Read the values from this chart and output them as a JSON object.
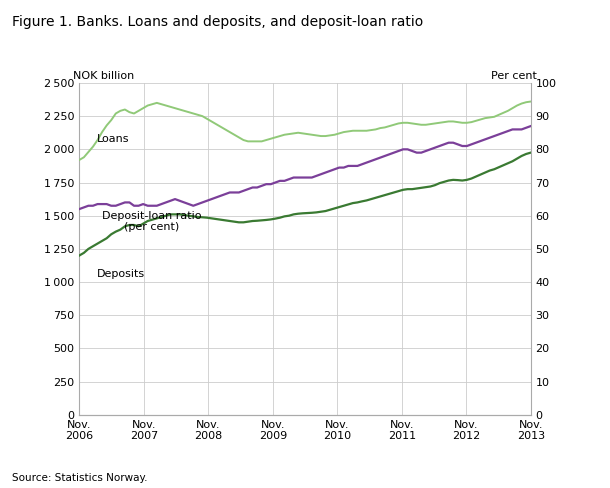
{
  "title": "Figure 1. Banks. Loans and deposits, and deposit-loan ratio",
  "ylabel_left": "NOK billion",
  "ylabel_right": "Per cent",
  "source": "Source: Statistics Norway.",
  "x_tick_labels": [
    "Nov.\n2006",
    "Nov.\n2007",
    "Nov.\n2008",
    "Nov.\n2009",
    "Nov.\n2010",
    "Nov.\n2011",
    "Nov.\n2012",
    "Nov.\n2013"
  ],
  "ylim_left": [
    0,
    2500
  ],
  "ylim_right": [
    0,
    100
  ],
  "yticks_left": [
    0,
    250,
    500,
    750,
    1000,
    1250,
    1500,
    1750,
    2000,
    2250,
    2500
  ],
  "yticks_right": [
    0,
    10,
    20,
    30,
    40,
    50,
    60,
    70,
    80,
    90,
    100
  ],
  "loans_color": "#90c978",
  "deposits_color": "#3a7a32",
  "ratio_color": "#7b3f99",
  "background_color": "#ffffff",
  "grid_color": "#cccccc",
  "loans_label": "Loans",
  "deposits_label": "Deposits",
  "ratio_label": "Deposit-loan ratio\n(per cent)",
  "loans": [
    1920,
    1940,
    1980,
    2020,
    2070,
    2130,
    2180,
    2220,
    2270,
    2290,
    2300,
    2280,
    2270,
    2290,
    2310,
    2330,
    2340,
    2350,
    2340,
    2330,
    2320,
    2310,
    2300,
    2290,
    2280,
    2270,
    2260,
    2250,
    2230,
    2210,
    2190,
    2170,
    2150,
    2130,
    2110,
    2090,
    2070,
    2060,
    2060,
    2060,
    2060,
    2070,
    2080,
    2090,
    2100,
    2110,
    2115,
    2120,
    2125,
    2120,
    2115,
    2110,
    2105,
    2100,
    2100,
    2105,
    2110,
    2120,
    2130,
    2135,
    2140,
    2140,
    2140,
    2140,
    2145,
    2150,
    2160,
    2165,
    2175,
    2185,
    2195,
    2200,
    2200,
    2195,
    2190,
    2185,
    2185,
    2190,
    2195,
    2200,
    2205,
    2210,
    2210,
    2205,
    2200,
    2200,
    2205,
    2215,
    2225,
    2235,
    2240,
    2245,
    2260,
    2275,
    2290,
    2310,
    2330,
    2345,
    2355,
    2360
  ],
  "deposits": [
    1200,
    1220,
    1250,
    1270,
    1290,
    1310,
    1330,
    1360,
    1380,
    1395,
    1420,
    1430,
    1430,
    1420,
    1440,
    1460,
    1470,
    1480,
    1490,
    1500,
    1510,
    1510,
    1510,
    1505,
    1500,
    1495,
    1490,
    1488,
    1485,
    1480,
    1475,
    1470,
    1465,
    1460,
    1455,
    1450,
    1450,
    1455,
    1460,
    1462,
    1465,
    1468,
    1472,
    1478,
    1485,
    1495,
    1500,
    1510,
    1515,
    1518,
    1520,
    1522,
    1525,
    1530,
    1535,
    1545,
    1555,
    1565,
    1575,
    1585,
    1595,
    1600,
    1608,
    1615,
    1625,
    1635,
    1645,
    1655,
    1665,
    1675,
    1685,
    1695,
    1700,
    1700,
    1705,
    1710,
    1715,
    1720,
    1730,
    1745,
    1755,
    1765,
    1770,
    1768,
    1765,
    1770,
    1780,
    1795,
    1810,
    1825,
    1840,
    1850,
    1865,
    1880,
    1895,
    1910,
    1930,
    1950,
    1965,
    1975
  ],
  "ratio": [
    62,
    62.5,
    63,
    63,
    63.5,
    63.5,
    63.5,
    63,
    63,
    63.5,
    64,
    64,
    63,
    63,
    63.5,
    63,
    63,
    63,
    63.5,
    64,
    64.5,
    65,
    64.5,
    64,
    63.5,
    63,
    63.5,
    64,
    64.5,
    65,
    65.5,
    66,
    66.5,
    67,
    67,
    67,
    67.5,
    68,
    68.5,
    68.5,
    69,
    69.5,
    69.5,
    70,
    70.5,
    70.5,
    71,
    71.5,
    71.5,
    71.5,
    71.5,
    71.5,
    72,
    72.5,
    73,
    73.5,
    74,
    74.5,
    74.5,
    75,
    75,
    75,
    75.5,
    76,
    76.5,
    77,
    77.5,
    78,
    78.5,
    79,
    79.5,
    80,
    80,
    79.5,
    79,
    79,
    79.5,
    80,
    80.5,
    81,
    81.5,
    82,
    82,
    81.5,
    81,
    81,
    81.5,
    82,
    82.5,
    83,
    83.5,
    84,
    84.5,
    85,
    85.5,
    86,
    86,
    86,
    86.5,
    87
  ]
}
